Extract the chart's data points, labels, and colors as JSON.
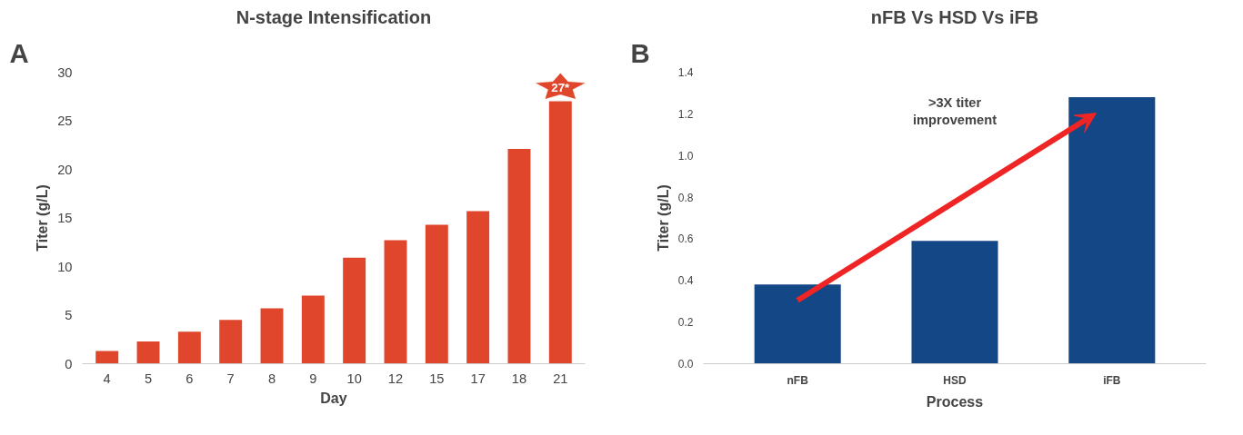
{
  "chart_data": [
    {
      "type": "bar",
      "title": "N-stage Intensification",
      "xlabel": "Day",
      "ylabel": "Titer (g/L)",
      "annotations": [
        "A"
      ],
      "categories": [
        "4",
        "5",
        "6",
        "7",
        "8",
        "9",
        "10",
        "12",
        "15",
        "17",
        "18",
        "21"
      ],
      "series": [
        {
          "color": "#e0462b",
          "values": [
            1.3,
            2.3,
            3.3,
            4.5,
            5.7,
            7.0,
            10.9,
            12.7,
            14.3,
            15.7,
            22.1,
            27
          ]
        }
      ],
      "value_labels": [
        null,
        null,
        null,
        null,
        null,
        null,
        null,
        null,
        null,
        null,
        null,
        "27*"
      ],
      "ylim": [
        0,
        30
      ],
      "yticks": [
        0,
        5,
        10,
        15,
        20,
        25,
        30
      ],
      "grid": false
    },
    {
      "type": "bar",
      "title": "nFB Vs HSD Vs iFB",
      "xlabel": "Process",
      "ylabel": "Titer (g/L)",
      "annotations": [
        "B",
        ">3X titer\nimprovement"
      ],
      "categories": [
        "nFB",
        "HSD",
        "iFB"
      ],
      "series": [
        {
          "color": "#134785",
          "values": [
            0.38,
            0.59,
            1.28
          ]
        }
      ],
      "ylim": [
        0,
        1.4
      ],
      "yticks": [
        {
          "value": 0,
          "label": "0.0"
        },
        {
          "value": 0.2,
          "label": "0.2"
        },
        {
          "value": 0.4,
          "label": "0.4"
        },
        {
          "value": 0.6,
          "label": "0.6"
        },
        {
          "value": 0.8,
          "label": "0.8"
        },
        {
          "value": 1.0,
          "label": "1.0"
        },
        {
          "value": 1.2,
          "label": "1.2"
        },
        {
          "value": 1.4,
          "label": "1.4"
        }
      ],
      "grid": false
    }
  ]
}
